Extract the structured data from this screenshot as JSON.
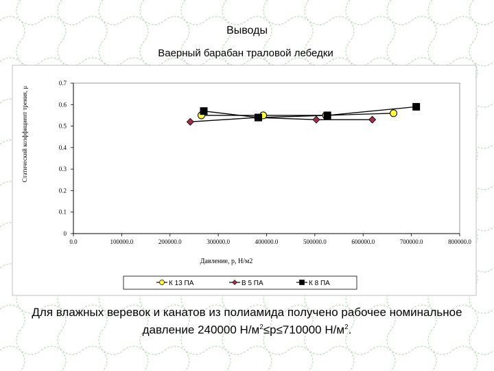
{
  "slide": {
    "title": "Выводы",
    "caption_line1": "Для влажных веревок и канатов из полиамида получено рабочее номинальное",
    "caption_line2_a": "давление 240000 Н/м",
    "caption_line2_b": "2",
    "caption_line2_c": "≤p≤710000 Н/м",
    "caption_line2_d": "2",
    "caption_line2_e": "."
  },
  "colors": {
    "net": "#c8dcc8",
    "axis": "#000000",
    "k13_fill": "#ffff33",
    "b5_fill": "#a0304a",
    "k8_fill": "#000000"
  },
  "chart_data": {
    "type": "line",
    "title": "Ваерный барабан траловой лебедки",
    "xlabel": "Давление, p, Н/м2",
    "ylabel": "Статический коэффициент трения, μ",
    "xlim": [
      0,
      800000
    ],
    "ylim": [
      0,
      0.7
    ],
    "x_tick_labels": [
      "0.0",
      "100000.0",
      "200000.0",
      "300000.0",
      "400000.0",
      "500000.0",
      "600000.0",
      "700000.0",
      "800000.0"
    ],
    "y_tick_labels": [
      "0",
      "0.1",
      "0.2",
      "0.3",
      "0.4",
      "0.5",
      "0.6",
      "0.7"
    ],
    "grid": false,
    "legend_position": "bottom",
    "series": [
      {
        "name": "К 13 ПА",
        "marker": "circle",
        "x": [
          265000,
          393000,
          523000,
          663000
        ],
        "y": [
          0.55,
          0.55,
          0.55,
          0.56
        ]
      },
      {
        "name": "В 5 ПА",
        "marker": "diamond",
        "x": [
          242000,
          380000,
          503000,
          619000
        ],
        "y": [
          0.52,
          0.54,
          0.53,
          0.53
        ]
      },
      {
        "name": "К 8 ПА",
        "marker": "square",
        "x": [
          270000,
          383000,
          526000,
          710000
        ],
        "y": [
          0.57,
          0.54,
          0.55,
          0.59
        ]
      }
    ]
  }
}
